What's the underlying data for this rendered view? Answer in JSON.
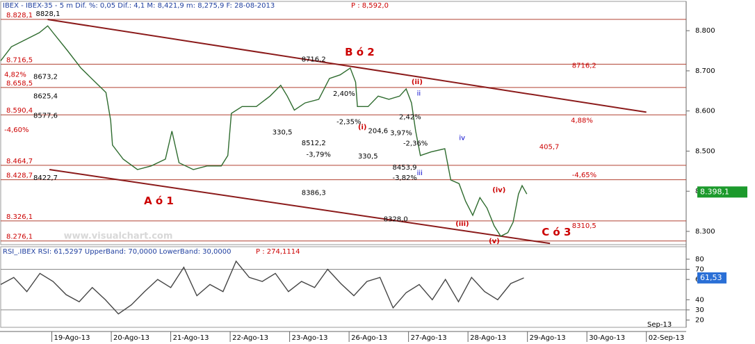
{
  "chart_data": [
    {
      "type": "line",
      "title": "IBEX - IBEX-35 - 5 m Dif. %: 0,05 Dif.: 4,1 M: 8,421,9 m: 8,275,9 F: 28-08-2013",
      "subtitle": "P : 8,592,0",
      "x_secondary_label": "Sep-13",
      "xlim": [
        -0.86,
        10.67
      ],
      "xticks": [
        {
          "value": 0,
          "label": "19-Ago-13"
        },
        {
          "value": 1,
          "label": "20-Ago-13"
        },
        {
          "value": 2,
          "label": "21-Ago-13"
        },
        {
          "value": 3,
          "label": "22-Ago-13"
        },
        {
          "value": 4,
          "label": "23-Ago-13"
        },
        {
          "value": 5,
          "label": "26-Ago-13"
        },
        {
          "value": 6,
          "label": "27-Ago-13"
        },
        {
          "value": 7,
          "label": "28-Ago-13"
        },
        {
          "value": 8,
          "label": "29-Ago-13"
        },
        {
          "value": 9,
          "label": "30-Ago-13"
        },
        {
          "value": 10,
          "label": "02-Sep-13"
        }
      ],
      "ylim": [
        8267,
        8873
      ],
      "yticks": [
        {
          "value": 8300,
          "label": "8.300"
        },
        {
          "value": 8400,
          "label": "8.400"
        },
        {
          "value": 8500,
          "label": "8.500"
        },
        {
          "value": 8600,
          "label": "8.600"
        },
        {
          "value": 8700,
          "label": "8.700"
        },
        {
          "value": 8800,
          "label": "8.800"
        }
      ],
      "grid": false,
      "series": [
        {
          "name": "IBEX-35",
          "color": "#2e6b2e",
          "x": [
            -0.86,
            -0.68,
            -0.45,
            -0.21,
            -0.07,
            0.02,
            0.26,
            0.49,
            0.73,
            0.91,
            0.99,
            1.02,
            1.2,
            1.44,
            1.67,
            1.91,
            2.02,
            2.14,
            2.38,
            2.61,
            2.85,
            2.96,
            3.02,
            3.2,
            3.44,
            3.67,
            3.85,
            3.96,
            4.08,
            4.26,
            4.49,
            4.67,
            4.85,
            5.02,
            5.11,
            5.14,
            5.32,
            5.49,
            5.67,
            5.85,
            5.96,
            6.05,
            6.12,
            6.2,
            6.38,
            6.61,
            6.71,
            6.85,
            6.96,
            7.08,
            7.2,
            7.32,
            7.44,
            7.55,
            7.67,
            7.76,
            7.85,
            7.91,
            7.99
          ],
          "values": [
            8725,
            8760,
            8777,
            8795,
            8812,
            8795,
            8751,
            8707,
            8672,
            8646,
            8576,
            8515,
            8480,
            8454,
            8463,
            8480,
            8550,
            8471,
            8454,
            8463,
            8463,
            8489,
            8594,
            8611,
            8611,
            8637,
            8664,
            8637,
            8602,
            8620,
            8629,
            8681,
            8690,
            8707,
            8672,
            8611,
            8611,
            8637,
            8629,
            8637,
            8655,
            8620,
            8550,
            8489,
            8498,
            8506,
            8428,
            8419,
            8375,
            8340,
            8384,
            8358,
            8314,
            8288,
            8297,
            8323,
            8393,
            8414,
            8393
          ]
        }
      ],
      "last_value": {
        "value": 8398.1,
        "label": "8.398,1"
      },
      "levels": [
        {
          "value": 8828.1,
          "label": "8.828,1"
        },
        {
          "value": 8716.5,
          "label": "8.716,5"
        },
        {
          "value": 8658.5,
          "label": "8.658,5"
        },
        {
          "value": 8590.4,
          "label": "8.590,4"
        },
        {
          "value": 8464.7,
          "label": "8.464,7"
        },
        {
          "value": 8428.7,
          "label": "8.428,7"
        },
        {
          "value": 8326.1,
          "label": "8.326,1"
        },
        {
          "value": 8276.1,
          "label": "8.276,1"
        }
      ],
      "trendlines": [
        {
          "x": [
            -0.07,
            10.0
          ],
          "y": [
            8828,
            8597
          ]
        },
        {
          "x": [
            -0.04,
            8.38
          ],
          "y": [
            8454,
            8270
          ]
        }
      ],
      "annotations": [
        {
          "text": "8828,1",
          "x": -0.27,
          "y": 8842,
          "color": "#000000"
        },
        {
          "text": "4,82%",
          "x": -0.8,
          "y": 8690,
          "color": "#cc0000"
        },
        {
          "text": "-4,60%",
          "x": -0.8,
          "y": 8553,
          "color": "#cc0000"
        },
        {
          "text": "8673,2",
          "x": -0.31,
          "y": 8685,
          "color": "#000000"
        },
        {
          "text": "8625,4",
          "x": -0.31,
          "y": 8637,
          "color": "#000000"
        },
        {
          "text": "8577,6",
          "x": -0.31,
          "y": 8588,
          "color": "#000000"
        },
        {
          "text": "8422,7",
          "x": -0.31,
          "y": 8433,
          "color": "#000000"
        },
        {
          "text": "A ó 1",
          "x": 1.55,
          "y": 8375,
          "color": "#cc0000"
        },
        {
          "text": "B ó 2",
          "x": 4.93,
          "y": 8746,
          "color": "#cc0000"
        },
        {
          "text": "C ó 3",
          "x": 8.24,
          "y": 8297,
          "color": "#cc0000"
        },
        {
          "text": "(i)",
          "x": 5.15,
          "y": 8560,
          "color": "#cc0000"
        },
        {
          "text": "(ii)",
          "x": 6.05,
          "y": 8672,
          "color": "#cc0000"
        },
        {
          "text": "(iii)",
          "x": 6.79,
          "y": 8319,
          "color": "#cc0000"
        },
        {
          "text": "(iv)",
          "x": 7.41,
          "y": 8403,
          "color": "#cc0000"
        },
        {
          "text": "(v)",
          "x": 7.35,
          "y": 8276,
          "color": "#cc0000"
        },
        {
          "text": "iv",
          "x": 6.85,
          "y": 8533,
          "color": "#0000cc"
        },
        {
          "text": "ii",
          "x": 6.14,
          "y": 8644,
          "color": "#0000cc"
        },
        {
          "text": "iii",
          "x": 6.14,
          "y": 8445,
          "color": "#0000cc"
        },
        {
          "text": "330,5",
          "x": 3.71,
          "y": 8547,
          "color": "#000000"
        },
        {
          "text": "330,5",
          "x": 5.15,
          "y": 8487,
          "color": "#000000"
        },
        {
          "text": "204,6",
          "x": 5.32,
          "y": 8550,
          "color": "#000000"
        },
        {
          "text": "3,97%",
          "x": 5.69,
          "y": 8545,
          "color": "#000000"
        },
        {
          "text": "2,42%",
          "x": 5.84,
          "y": 8585,
          "color": "#000000"
        },
        {
          "text": "-2,36%",
          "x": 5.91,
          "y": 8519,
          "color": "#000000"
        },
        {
          "text": "-3,79%",
          "x": 4.28,
          "y": 8491,
          "color": "#000000"
        },
        {
          "text": "-3,82%",
          "x": 5.73,
          "y": 8433,
          "color": "#000000"
        },
        {
          "text": "-2,35%",
          "x": 4.79,
          "y": 8573,
          "color": "#000000"
        },
        {
          "text": "2,40%",
          "x": 4.73,
          "y": 8643,
          "color": "#000000"
        },
        {
          "text": "8716,2",
          "x": 4.2,
          "y": 8728,
          "color": "#000000"
        },
        {
          "text": "8512,2",
          "x": 4.2,
          "y": 8520,
          "color": "#000000"
        },
        {
          "text": "8386,3",
          "x": 4.2,
          "y": 8396,
          "color": "#000000"
        },
        {
          "text": "8453,9",
          "x": 5.73,
          "y": 8459,
          "color": "#000000"
        },
        {
          "text": "8328,0",
          "x": 5.58,
          "y": 8330,
          "color": "#000000"
        },
        {
          "text": "4,88%",
          "x": 8.73,
          "y": 8576,
          "color": "#cc0000"
        },
        {
          "text": "405,7",
          "x": 8.2,
          "y": 8510,
          "color": "#cc0000"
        },
        {
          "text": "-4,65%",
          "x": 8.75,
          "y": 8440,
          "color": "#cc0000"
        },
        {
          "text": "8716,2",
          "x": 8.75,
          "y": 8713,
          "color": "#cc0000"
        },
        {
          "text": "8310,5",
          "x": 8.75,
          "y": 8314,
          "color": "#cc0000"
        },
        {
          "text": "www.visualchart.com",
          "x": 0.2,
          "y": 8288,
          "color": "#d8d8d8"
        }
      ]
    },
    {
      "type": "line",
      "title": "RSI_.IBEX RSI: 61,5297 UpperBand: 70,0000 LowerBand: 30,0000",
      "subtitle": "P : 274,1114",
      "xlim": [
        -0.86,
        10.67
      ],
      "ylim": [
        12.8,
        92.3
      ],
      "yticks": [
        20,
        30,
        40,
        60,
        70,
        80
      ],
      "grid": false,
      "levels": [
        70,
        30
      ],
      "series": [
        {
          "name": "RSI",
          "color": "#444444",
          "x": [
            -0.86,
            -0.64,
            -0.42,
            -0.2,
            0.02,
            0.24,
            0.46,
            0.68,
            0.9,
            1.12,
            1.34,
            1.56,
            1.78,
            2,
            2.22,
            2.44,
            2.66,
            2.88,
            3.1,
            3.32,
            3.54,
            3.76,
            3.98,
            4.2,
            4.42,
            4.64,
            4.86,
            5.08,
            5.3,
            5.52,
            5.74,
            5.96,
            6.18,
            6.4,
            6.62,
            6.84,
            7.06,
            7.28,
            7.5,
            7.72,
            7.94
          ],
          "values": [
            55,
            62,
            48,
            66,
            58,
            45,
            38,
            52,
            40,
            26,
            35,
            48,
            60,
            52,
            72,
            44,
            55,
            48,
            78,
            62,
            58,
            66,
            48,
            58,
            52,
            70,
            56,
            44,
            58,
            62,
            32,
            47,
            55,
            40,
            60,
            38,
            62,
            48,
            40,
            56,
            61.53
          ]
        }
      ],
      "last_value": {
        "value": 61.53,
        "label": "61,53"
      }
    }
  ]
}
